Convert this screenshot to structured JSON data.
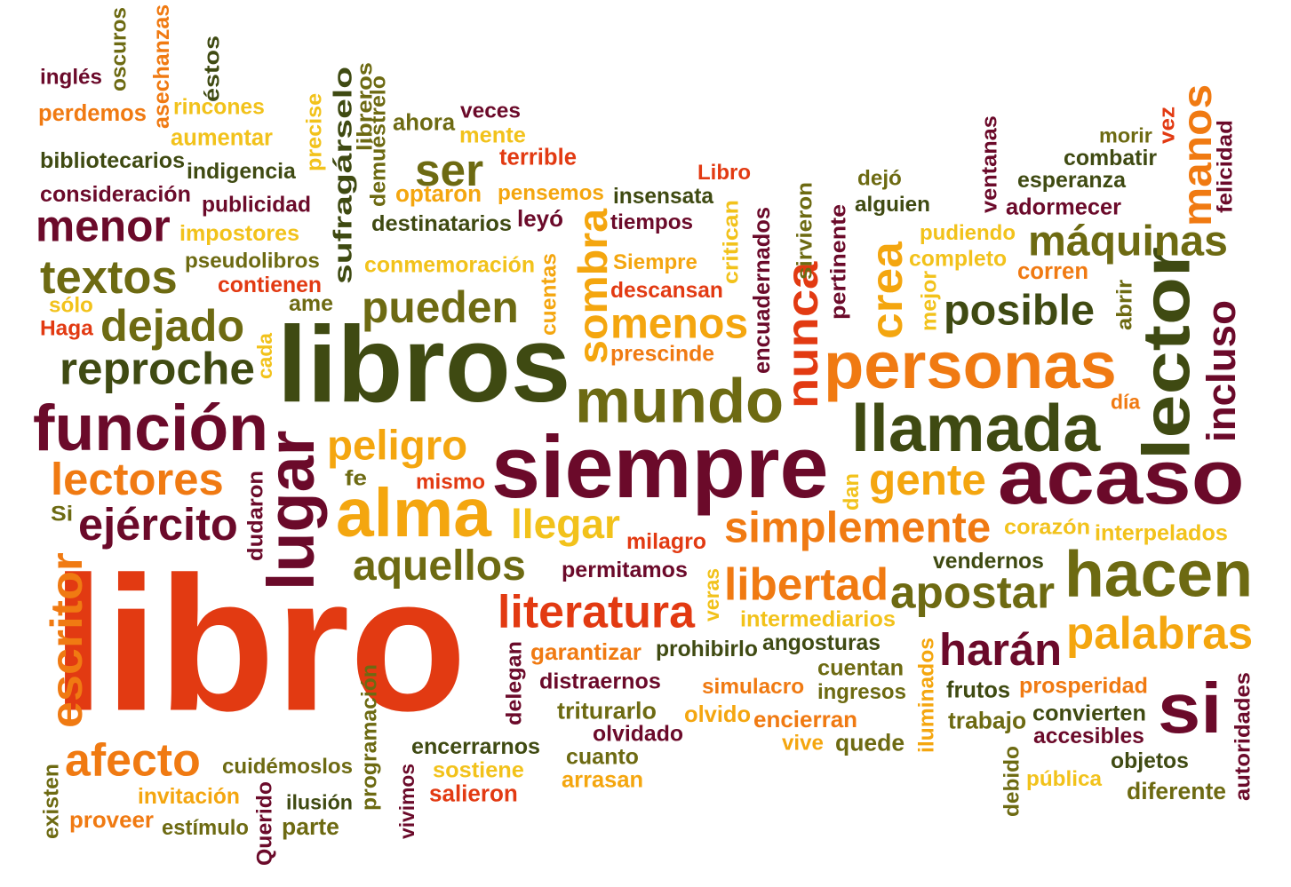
{
  "palette": {
    "background": "#ffffff",
    "dark_red": "#6b0a2a",
    "red": "#e23a12",
    "orange": "#f07a12",
    "gold": "#f4a60f",
    "yellow": "#f2c21b",
    "olive": "#6d6a12",
    "dark_olive": "#3f4a12"
  },
  "words": [
    {
      "text": "libro",
      "color": "#e23a12",
      "rotated": false
    },
    {
      "text": "libros",
      "color": "#3f4a12",
      "rotated": false
    },
    {
      "text": "siempre",
      "color": "#6b0a2a",
      "rotated": false
    },
    {
      "text": "acaso",
      "color": "#6b0a2a",
      "rotated": false
    },
    {
      "text": "personas",
      "color": "#f07a12",
      "rotated": false
    },
    {
      "text": "llamada",
      "color": "#3f4a12",
      "rotated": false
    },
    {
      "text": "lector",
      "color": "#3f4a12",
      "rotated": true
    },
    {
      "text": "función",
      "color": "#6b0a2a",
      "rotated": false
    },
    {
      "text": "mundo",
      "color": "#6d6a12",
      "rotated": false
    },
    {
      "text": "alma",
      "color": "#f4a60f",
      "rotated": false
    },
    {
      "text": "hacen",
      "color": "#6d6a12",
      "rotated": false
    },
    {
      "text": "lugar",
      "color": "#6b0a2a",
      "rotated": true
    },
    {
      "text": "si",
      "color": "#6b0a2a",
      "rotated": false
    },
    {
      "text": "manos",
      "color": "#f07a12",
      "rotated": true
    },
    {
      "text": "posible",
      "color": "#3f4a12",
      "rotated": false
    },
    {
      "text": "pueden",
      "color": "#6d6a12",
      "rotated": false
    },
    {
      "text": "menor",
      "color": "#6b0a2a",
      "rotated": false
    },
    {
      "text": "textos",
      "color": "#6d6a12",
      "rotated": false
    },
    {
      "text": "dejado",
      "color": "#6d6a12",
      "rotated": false
    },
    {
      "text": "reproche",
      "color": "#3f4a12",
      "rotated": false
    },
    {
      "text": "lectores",
      "color": "#f07a12",
      "rotated": false
    },
    {
      "text": "ejército",
      "color": "#6b0a2a",
      "rotated": false
    },
    {
      "text": "escritor",
      "color": "#f07a12",
      "rotated": true
    },
    {
      "text": "afecto",
      "color": "#f07a12",
      "rotated": false
    },
    {
      "text": "peligro",
      "color": "#f4a60f",
      "rotated": false
    },
    {
      "text": "simplemente",
      "color": "#f07a12",
      "rotated": false
    },
    {
      "text": "gente",
      "color": "#f4a60f",
      "rotated": false
    },
    {
      "text": "llegar",
      "color": "#f2c21b",
      "rotated": false
    },
    {
      "text": "aquellos",
      "color": "#6d6a12",
      "rotated": false
    },
    {
      "text": "libertad",
      "color": "#f07a12",
      "rotated": false
    },
    {
      "text": "apostar",
      "color": "#6d6a12",
      "rotated": false
    },
    {
      "text": "literatura",
      "color": "#e23a12",
      "rotated": false
    },
    {
      "text": "palabras",
      "color": "#f4a60f",
      "rotated": false
    },
    {
      "text": "harán",
      "color": "#6b0a2a",
      "rotated": false
    },
    {
      "text": "máquinas",
      "color": "#6d6a12",
      "rotated": false
    },
    {
      "text": "menos",
      "color": "#f4a60f",
      "rotated": false
    },
    {
      "text": "sombra",
      "color": "#f4a60f",
      "rotated": true
    },
    {
      "text": "nunca",
      "color": "#e23a12",
      "rotated": true
    },
    {
      "text": "crea",
      "color": "#f4a60f",
      "rotated": true
    },
    {
      "text": "incluso",
      "color": "#6b0a2a",
      "rotated": true
    },
    {
      "text": "ser",
      "color": "#6d6a12",
      "rotated": false
    },
    {
      "text": "inglés",
      "color": "#6b0a2a",
      "rotated": false
    },
    {
      "text": "oscuros",
      "color": "#6d6a12",
      "rotated": true
    },
    {
      "text": "asechanzas",
      "color": "#f07a12",
      "rotated": true
    },
    {
      "text": "éstos",
      "color": "#3f4a12",
      "rotated": true
    },
    {
      "text": "perdemos",
      "color": "#f07a12",
      "rotated": false
    },
    {
      "text": "rincones",
      "color": "#f2c21b",
      "rotated": false
    },
    {
      "text": "aumentar",
      "color": "#f2c21b",
      "rotated": false
    },
    {
      "text": "bibliotecarios",
      "color": "#3f4a12",
      "rotated": false
    },
    {
      "text": "indigencia",
      "color": "#3f4a12",
      "rotated": false
    },
    {
      "text": "consideración",
      "color": "#6b0a2a",
      "rotated": false
    },
    {
      "text": "publicidad",
      "color": "#6b0a2a",
      "rotated": false
    },
    {
      "text": "impostores",
      "color": "#f2c21b",
      "rotated": false
    },
    {
      "text": "pseudolibros",
      "color": "#6d6a12",
      "rotated": false
    },
    {
      "text": "contienen",
      "color": "#e23a12",
      "rotated": false
    },
    {
      "text": "sólo",
      "color": "#f2c21b",
      "rotated": false
    },
    {
      "text": "Haga",
      "color": "#e23a12",
      "rotated": false
    },
    {
      "text": "ame",
      "color": "#6d6a12",
      "rotated": false
    },
    {
      "text": "cada",
      "color": "#f2c21b",
      "rotated": true
    },
    {
      "text": "precise",
      "color": "#f2c21b",
      "rotated": true
    },
    {
      "text": "sufragárselo",
      "color": "#3f4a12",
      "rotated": true
    },
    {
      "text": "libreros",
      "color": "#6d6a12",
      "rotated": true
    },
    {
      "text": "demuéstrelo",
      "color": "#6d6a12",
      "rotated": true
    },
    {
      "text": "ahora",
      "color": "#6d6a12",
      "rotated": false
    },
    {
      "text": "veces",
      "color": "#6b0a2a",
      "rotated": false
    },
    {
      "text": "mente",
      "color": "#f2c21b",
      "rotated": false
    },
    {
      "text": "terrible",
      "color": "#e23a12",
      "rotated": false
    },
    {
      "text": "optaron",
      "color": "#f4a60f",
      "rotated": false
    },
    {
      "text": "pensemos",
      "color": "#f4a60f",
      "rotated": false
    },
    {
      "text": "insensata",
      "color": "#3f4a12",
      "rotated": false
    },
    {
      "text": "tiempos",
      "color": "#6b0a2a",
      "rotated": false
    },
    {
      "text": "destinatarios",
      "color": "#3f4a12",
      "rotated": false
    },
    {
      "text": "leyó",
      "color": "#6b0a2a",
      "rotated": false
    },
    {
      "text": "conmemoración",
      "color": "#f2c21b",
      "rotated": false
    },
    {
      "text": "cuentas",
      "color": "#f4a60f",
      "rotated": true
    },
    {
      "text": "Siempre",
      "color": "#f4a60f",
      "rotated": false
    },
    {
      "text": "descansan",
      "color": "#e23a12",
      "rotated": false
    },
    {
      "text": "critican",
      "color": "#f2c21b",
      "rotated": true
    },
    {
      "text": "Libro",
      "color": "#e23a12",
      "rotated": false
    },
    {
      "text": "encuadernados",
      "color": "#6b0a2a",
      "rotated": true
    },
    {
      "text": "prescinde",
      "color": "#f07a12",
      "rotated": false
    },
    {
      "text": "sirvieron",
      "color": "#6d6a12",
      "rotated": true
    },
    {
      "text": "pertinente",
      "color": "#6b0a2a",
      "rotated": true
    },
    {
      "text": "dejó",
      "color": "#6d6a12",
      "rotated": false
    },
    {
      "text": "alguien",
      "color": "#3f4a12",
      "rotated": false
    },
    {
      "text": "pudiendo",
      "color": "#f2c21b",
      "rotated": false
    },
    {
      "text": "completo",
      "color": "#f2c21b",
      "rotated": false
    },
    {
      "text": "mejor",
      "color": "#f2c21b",
      "rotated": true
    },
    {
      "text": "corren",
      "color": "#f07a12",
      "rotated": false
    },
    {
      "text": "abrir",
      "color": "#6d6a12",
      "rotated": true
    },
    {
      "text": "ventanas",
      "color": "#6b0a2a",
      "rotated": true
    },
    {
      "text": "morir",
      "color": "#6d6a12",
      "rotated": false
    },
    {
      "text": "vez",
      "color": "#e23a12",
      "rotated": true
    },
    {
      "text": "felicidad",
      "color": "#6b0a2a",
      "rotated": true
    },
    {
      "text": "combatir",
      "color": "#3f4a12",
      "rotated": false
    },
    {
      "text": "esperanza",
      "color": "#3f4a12",
      "rotated": false
    },
    {
      "text": "adormecer",
      "color": "#6b0a2a",
      "rotated": false
    },
    {
      "text": "día",
      "color": "#f07a12",
      "rotated": false
    },
    {
      "text": "fe",
      "color": "#6d6a12",
      "rotated": false
    },
    {
      "text": "mismo",
      "color": "#e23a12",
      "rotated": false
    },
    {
      "text": "dudaron",
      "color": "#6b0a2a",
      "rotated": true
    },
    {
      "text": "Si",
      "color": "#6d6a12",
      "rotated": false
    },
    {
      "text": "dan",
      "color": "#f2c21b",
      "rotated": true
    },
    {
      "text": "corazón",
      "color": "#f2c21b",
      "rotated": false
    },
    {
      "text": "interpelados",
      "color": "#f2c21b",
      "rotated": false
    },
    {
      "text": "milagro",
      "color": "#e23a12",
      "rotated": false
    },
    {
      "text": "permitamos",
      "color": "#6b0a2a",
      "rotated": false
    },
    {
      "text": "vendernos",
      "color": "#3f4a12",
      "rotated": false
    },
    {
      "text": "veras",
      "color": "#f2c21b",
      "rotated": true
    },
    {
      "text": "intermediarios",
      "color": "#f2c21b",
      "rotated": false
    },
    {
      "text": "garantizar",
      "color": "#f07a12",
      "rotated": false
    },
    {
      "text": "prohibirlo",
      "color": "#3f4a12",
      "rotated": false
    },
    {
      "text": "angosturas",
      "color": "#3f4a12",
      "rotated": false
    },
    {
      "text": "delegan",
      "color": "#6b0a2a",
      "rotated": true
    },
    {
      "text": "distraernos",
      "color": "#6b0a2a",
      "rotated": false
    },
    {
      "text": "cuentan",
      "color": "#6d6a12",
      "rotated": false
    },
    {
      "text": "ingresos",
      "color": "#6d6a12",
      "rotated": false
    },
    {
      "text": "simulacro",
      "color": "#f07a12",
      "rotated": false
    },
    {
      "text": "iluminados",
      "color": "#f4a60f",
      "rotated": true
    },
    {
      "text": "frutos",
      "color": "#3f4a12",
      "rotated": false
    },
    {
      "text": "prosperidad",
      "color": "#f07a12",
      "rotated": false
    },
    {
      "text": "triturarlo",
      "color": "#6d6a12",
      "rotated": false
    },
    {
      "text": "olvido",
      "color": "#f4a60f",
      "rotated": false
    },
    {
      "text": "encierran",
      "color": "#f07a12",
      "rotated": false
    },
    {
      "text": "trabajo",
      "color": "#6d6a12",
      "rotated": false
    },
    {
      "text": "convierten",
      "color": "#3f4a12",
      "rotated": false
    },
    {
      "text": "autoridades",
      "color": "#6b0a2a",
      "rotated": true
    },
    {
      "text": "olvidado",
      "color": "#6b0a2a",
      "rotated": false
    },
    {
      "text": "vive",
      "color": "#f4a60f",
      "rotated": false
    },
    {
      "text": "quede",
      "color": "#6d6a12",
      "rotated": false
    },
    {
      "text": "accesibles",
      "color": "#6b0a2a",
      "rotated": false
    },
    {
      "text": "programación",
      "color": "#6d6a12",
      "rotated": true
    },
    {
      "text": "encerrarnos",
      "color": "#3f4a12",
      "rotated": false
    },
    {
      "text": "cuanto",
      "color": "#6d6a12",
      "rotated": false
    },
    {
      "text": "objetos",
      "color": "#3f4a12",
      "rotated": false
    },
    {
      "text": "cuidémoslos",
      "color": "#6d6a12",
      "rotated": false
    },
    {
      "text": "sostiene",
      "color": "#f2c21b",
      "rotated": false
    },
    {
      "text": "arrasan",
      "color": "#f4a60f",
      "rotated": false
    },
    {
      "text": "pública",
      "color": "#f2c21b",
      "rotated": false
    },
    {
      "text": "debido",
      "color": "#6d6a12",
      "rotated": true
    },
    {
      "text": "diferente",
      "color": "#6d6a12",
      "rotated": false
    },
    {
      "text": "existen",
      "color": "#6d6a12",
      "rotated": true
    },
    {
      "text": "invitación",
      "color": "#f4a60f",
      "rotated": false
    },
    {
      "text": "ilusión",
      "color": "#3f4a12",
      "rotated": false
    },
    {
      "text": "vivimos",
      "color": "#6b0a2a",
      "rotated": true
    },
    {
      "text": "salieron",
      "color": "#e23a12",
      "rotated": false
    },
    {
      "text": "proveer",
      "color": "#f07a12",
      "rotated": false
    },
    {
      "text": "estímulo",
      "color": "#6d6a12",
      "rotated": false
    },
    {
      "text": "Querido",
      "color": "#6b0a2a",
      "rotated": true
    },
    {
      "text": "parte",
      "color": "#6d6a12",
      "rotated": false
    }
  ]
}
